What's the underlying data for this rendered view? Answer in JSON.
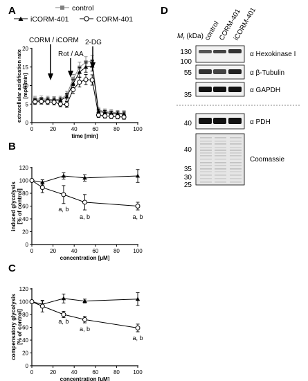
{
  "panels": {
    "A": "A",
    "B": "B",
    "C": "C",
    "D": "D"
  },
  "legend": {
    "control": "control",
    "icorm": "iCORM-401",
    "corm": "CORM-401"
  },
  "annotations": {
    "corm_icorm": "CORM / iCORM",
    "rot_aa": "Rot / AA",
    "two_dg": "2-DG",
    "sig": "a, b"
  },
  "chart_data": [
    {
      "type": "line",
      "panel": "A",
      "xlabel": "time [min]",
      "ylabel": "extracellular acidification rate [mpH/min]",
      "xlim": [
        0,
        100
      ],
      "ylim": [
        0,
        20
      ],
      "xticks": [
        0,
        20,
        40,
        60,
        80,
        100
      ],
      "yticks": [
        0,
        5,
        10,
        15,
        20
      ],
      "series": [
        {
          "name": "control",
          "marker": "square",
          "x": [
            3,
            9,
            15,
            21,
            27,
            33,
            39,
            45,
            51,
            57,
            63,
            69,
            75,
            81,
            87
          ],
          "y": [
            6.3,
            6.4,
            6.3,
            6.2,
            6.3,
            7.5,
            11.8,
            14.9,
            16.3,
            16.6,
            3.4,
            3.0,
            2.8,
            2.6,
            2.5
          ],
          "err": [
            0.8,
            0.8,
            0.8,
            0.8,
            0.8,
            1.0,
            1.2,
            1.4,
            1.5,
            1.5,
            0.7,
            0.7,
            0.7,
            0.7,
            0.7
          ]
        },
        {
          "name": "iCORM-401",
          "marker": "triangle",
          "x": [
            3,
            9,
            15,
            21,
            27,
            33,
            39,
            45,
            51,
            57,
            63,
            69,
            75,
            81,
            87
          ],
          "y": [
            5.9,
            6.0,
            6.0,
            6.0,
            6.0,
            7.0,
            10.5,
            13.6,
            15.0,
            15.3,
            3.0,
            2.7,
            2.5,
            2.4,
            2.3
          ],
          "err": [
            0.7,
            0.7,
            0.7,
            0.7,
            0.7,
            0.9,
            1.1,
            1.3,
            1.4,
            1.4,
            0.6,
            0.6,
            0.6,
            0.6,
            0.6
          ]
        },
        {
          "name": "CORM-401",
          "marker": "circle-open",
          "x": [
            3,
            9,
            15,
            21,
            27,
            33,
            39,
            45,
            51,
            57,
            63,
            69,
            75,
            81,
            87
          ],
          "y": [
            5.6,
            5.7,
            5.6,
            5.5,
            5.0,
            4.9,
            8.9,
            10.9,
            11.6,
            11.5,
            2.0,
            1.8,
            1.7,
            1.6,
            1.5
          ],
          "err": [
            0.7,
            0.7,
            0.7,
            0.7,
            0.7,
            0.8,
            1.1,
            1.3,
            1.4,
            1.4,
            0.6,
            0.6,
            0.6,
            0.6,
            0.6
          ]
        }
      ]
    },
    {
      "type": "line",
      "panel": "B",
      "xlabel": "concentration [µM]",
      "ylabel": "induced glycolysis [% of control]",
      "xlim": [
        0,
        100
      ],
      "ylim": [
        0,
        120
      ],
      "xticks": [
        0,
        20,
        40,
        60,
        80,
        100
      ],
      "yticks": [
        0,
        20,
        40,
        60,
        80,
        100,
        120
      ],
      "series": [
        {
          "name": "iCORM-401",
          "marker": "triangle",
          "x": [
            0,
            10,
            30,
            50,
            100
          ],
          "y": [
            100,
            97,
            107,
            104,
            107
          ],
          "err": [
            0,
            4,
            5,
            5,
            10
          ]
        },
        {
          "name": "CORM-401",
          "marker": "circle-open",
          "x": [
            0,
            10,
            30,
            50,
            100
          ],
          "y": [
            100,
            89,
            78,
            66,
            60
          ],
          "err": [
            0,
            8,
            14,
            12,
            6
          ]
        }
      ],
      "sig_labels": [
        {
          "x": 30,
          "y": 52,
          "text": "a, b"
        },
        {
          "x": 50,
          "y": 40,
          "text": "a, b"
        },
        {
          "x": 100,
          "y": 40,
          "text": "a, b"
        }
      ]
    },
    {
      "type": "line",
      "panel": "C",
      "xlabel": "concentration [µM]",
      "ylabel": "compensatory glycolysis [% of control]",
      "xlim": [
        0,
        100
      ],
      "ylim": [
        0,
        120
      ],
      "xticks": [
        0,
        20,
        40,
        60,
        80,
        100
      ],
      "yticks": [
        0,
        20,
        40,
        60,
        80,
        100,
        120
      ],
      "series": [
        {
          "name": "iCORM-401",
          "marker": "triangle",
          "x": [
            0,
            10,
            30,
            50,
            100
          ],
          "y": [
            100,
            96,
            105,
            101,
            104
          ],
          "err": [
            0,
            5,
            7,
            3,
            10
          ]
        },
        {
          "name": "CORM-401",
          "marker": "circle-open",
          "x": [
            0,
            10,
            30,
            50,
            100
          ],
          "y": [
            100,
            93,
            80,
            72,
            59
          ],
          "err": [
            0,
            9,
            5,
            5,
            6
          ]
        }
      ],
      "sig_labels": [
        {
          "x": 30,
          "y": 66,
          "text": "a, b"
        },
        {
          "x": 50,
          "y": 54,
          "text": "a, b"
        },
        {
          "x": 100,
          "y": 40,
          "text": "a, b"
        }
      ]
    }
  ],
  "blot": {
    "mr_label": "M",
    "mr_sub": "r",
    "mr_unit": " (kDa)",
    "lanes": [
      "control",
      "CORM-401",
      "iCORM-401"
    ],
    "markers_top": [
      "130",
      "100",
      "55",
      "35"
    ],
    "markers_bottom": [
      "40",
      "40",
      "35",
      "30",
      "25"
    ],
    "labels": [
      "α Hexokinase I",
      "α β-Tubulin",
      "α GAPDH",
      "α PDH",
      "Coomassie"
    ]
  },
  "colors": {
    "control": "#808080",
    "line": "#000000",
    "band": "#1a1a1a"
  }
}
